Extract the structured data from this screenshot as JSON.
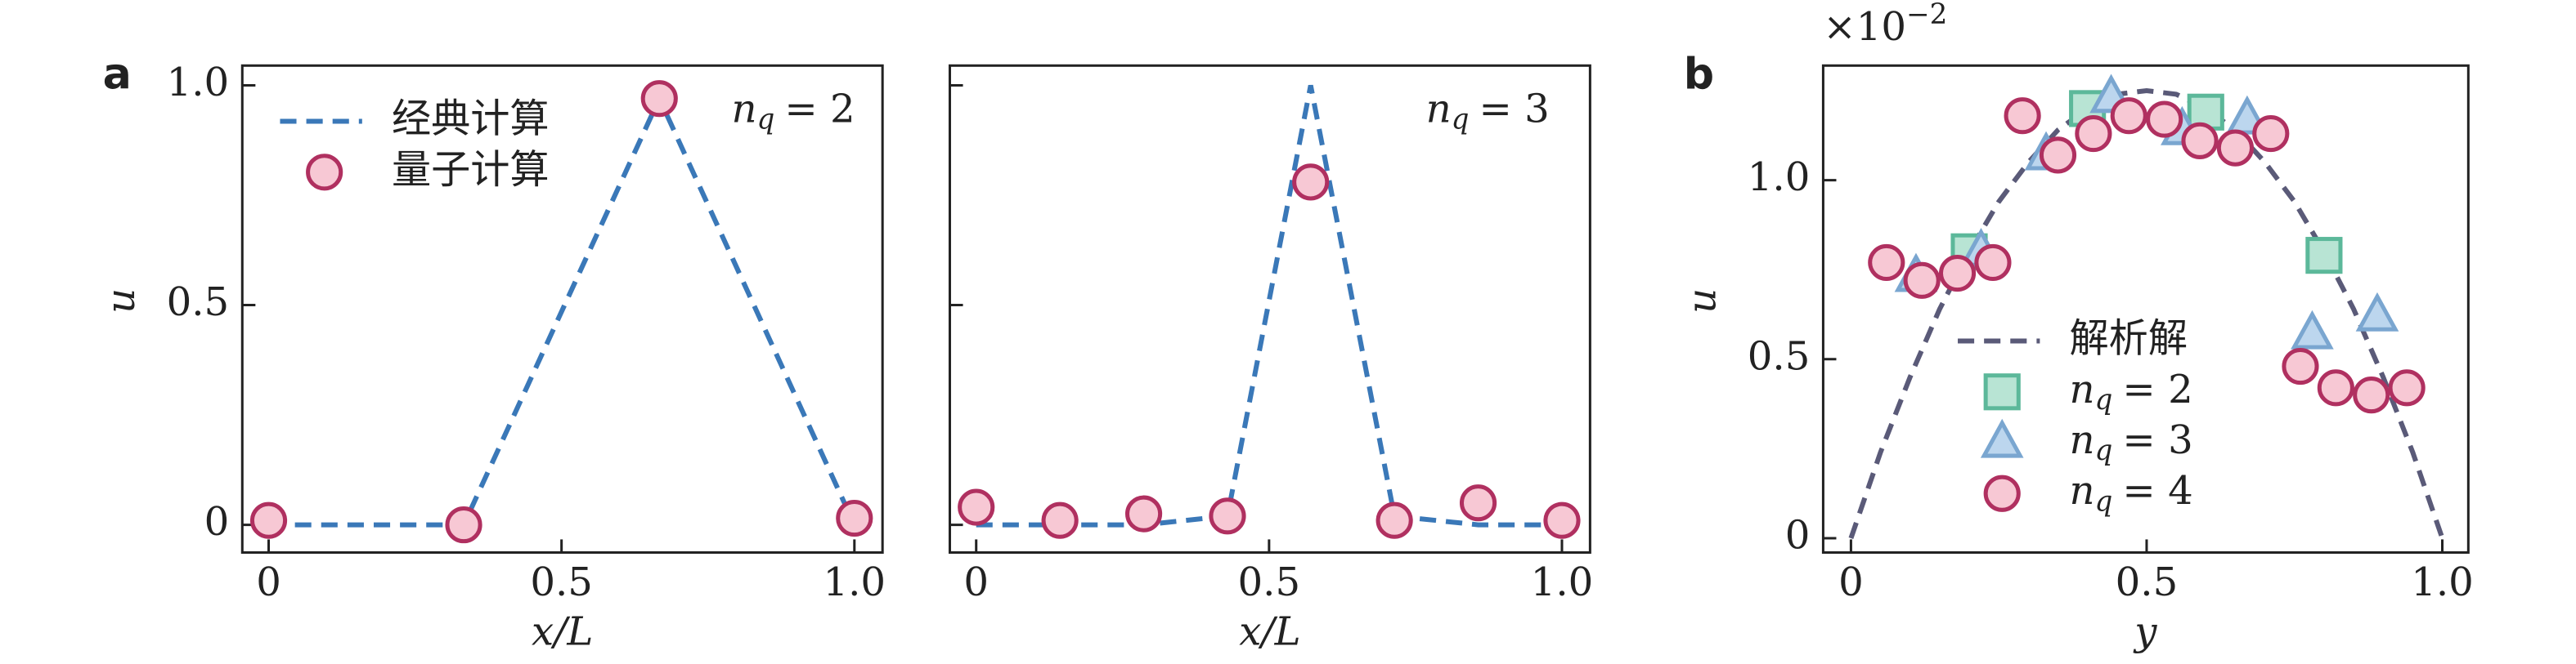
{
  "chart_data": [
    {
      "type": "line",
      "label": "a",
      "xlabel": "x/L",
      "ylabel": "u",
      "annotation": [
        "n",
        "q",
        "= 2"
      ],
      "xlim": [
        -0.045,
        1.048
      ],
      "ylim": [
        -0.063,
        1.045
      ],
      "xticks": [
        0,
        0.5,
        {
          "value": 1,
          "label": "1.0"
        }
      ],
      "yticks": [
        0,
        0.5,
        {
          "value": 1,
          "label": "1.0"
        }
      ],
      "series": [
        {
          "name": "经典计算",
          "kind": "line",
          "color": "#3a78b8",
          "x": [
            0,
            0.333,
            0.667,
            1
          ],
          "values": [
            0,
            0,
            0.97,
            0
          ]
        },
        {
          "name": "量子计算",
          "kind": "scatter",
          "marker": "circle",
          "color": "#b03060",
          "fill": "#f7c8d4",
          "x": [
            0,
            0.333,
            0.667,
            1
          ],
          "values": [
            0.01,
            0,
            0.97,
            0.015
          ]
        }
      ]
    },
    {
      "type": "line",
      "xlabel": "x/L",
      "annotation": [
        "n",
        "q",
        "= 3"
      ],
      "xlim": [
        -0.045,
        1.048
      ],
      "ylim": [
        -0.063,
        1.045
      ],
      "xticks": [
        0,
        0.5,
        {
          "value": 1,
          "label": "1.0"
        }
      ],
      "yticks": [
        0,
        0.5,
        1
      ],
      "show_ytick_labels": false,
      "series": [
        {
          "kind": "line",
          "color": "#3a78b8",
          "x": [
            0,
            0.143,
            0.286,
            0.429,
            0.571,
            0.714,
            0.857,
            1
          ],
          "values": [
            0,
            0,
            0,
            0.02,
            1.0,
            0.02,
            0,
            0
          ]
        },
        {
          "kind": "scatter",
          "marker": "circle",
          "color": "#b03060",
          "fill": "#f7c8d4",
          "x": [
            0,
            0.143,
            0.286,
            0.429,
            0.571,
            0.714,
            0.857,
            1
          ],
          "values": [
            0.04,
            0.01,
            0.025,
            0.02,
            0.78,
            0.01,
            0.05,
            0.01
          ]
        }
      ]
    },
    {
      "type": "line",
      "label": "b",
      "xlabel": "y",
      "ylabel": "u",
      "offset": [
        "×10",
        "−2"
      ],
      "xlim": [
        -0.047,
        1.044
      ],
      "ylim": [
        -0.04,
        1.32
      ],
      "xticks": [
        0,
        0.5,
        {
          "value": 1,
          "label": "1.0"
        }
      ],
      "yticks": [
        0,
        0.5,
        {
          "value": 1,
          "label": "1.0"
        }
      ],
      "series": [
        {
          "name": "解析解",
          "kind": "line",
          "color": "#5a5a78",
          "x": [
            0,
            0.05,
            0.1,
            0.15,
            0.2,
            0.25,
            0.3,
            0.35,
            0.4,
            0.45,
            0.5,
            0.55,
            0.6,
            0.65,
            0.7,
            0.75,
            0.8,
            0.85,
            0.9,
            0.95,
            1
          ],
          "values": [
            0,
            0.24,
            0.45,
            0.64,
            0.8,
            0.94,
            1.05,
            1.14,
            1.2,
            1.24,
            1.25,
            1.24,
            1.2,
            1.14,
            1.05,
            0.94,
            0.8,
            0.64,
            0.45,
            0.24,
            0
          ]
        },
        {
          "name": "nq = 2",
          "label_parts": [
            "n",
            "q",
            "= 2"
          ],
          "kind": "scatter",
          "marker": "square",
          "color": "#5cb89a",
          "fill": "#b8e4d4",
          "x": [
            0.2,
            0.4,
            0.6,
            0.8
          ],
          "values": [
            0.8,
            1.2,
            1.19,
            0.79
          ]
        },
        {
          "name": "nq = 3",
          "label_parts": [
            "n",
            "q",
            "= 3"
          ],
          "kind": "scatter",
          "marker": "triangle",
          "color": "#7aa6d0",
          "fill": "#bcd6ee",
          "x": [
            0.11,
            0.22,
            0.33,
            0.44,
            0.56,
            0.67,
            0.78,
            0.89
          ],
          "values": [
            0.73,
            0.8,
            1.07,
            1.23,
            1.14,
            1.17,
            0.57,
            0.62
          ]
        },
        {
          "name": "nq = 4",
          "label_parts": [
            "n",
            "q",
            "= 4"
          ],
          "kind": "scatter",
          "marker": "circle",
          "color": "#b03060",
          "fill": "#f7c8d4",
          "x": [
            0.06,
            0.12,
            0.18,
            0.24,
            0.29,
            0.35,
            0.41,
            0.47,
            0.53,
            0.59,
            0.65,
            0.71,
            0.76,
            0.82,
            0.88,
            0.94
          ],
          "values": [
            0.77,
            0.72,
            0.74,
            0.77,
            1.18,
            1.07,
            1.13,
            1.18,
            1.17,
            1.11,
            1.09,
            1.13,
            0.48,
            0.42,
            0.4,
            0.42
          ]
        }
      ]
    }
  ]
}
